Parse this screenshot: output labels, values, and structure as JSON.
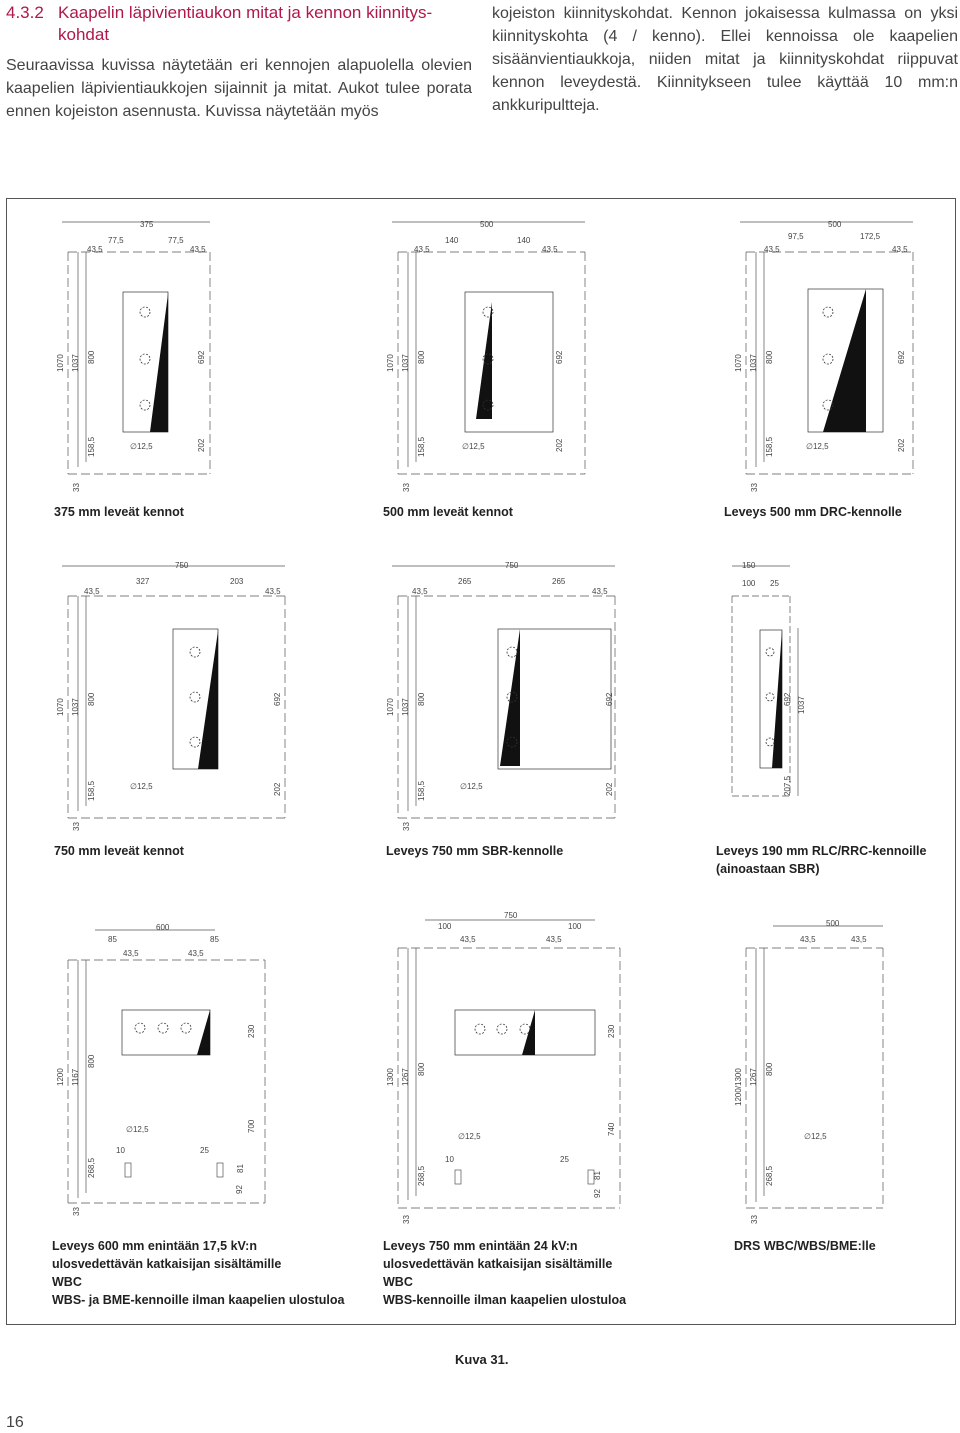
{
  "section": {
    "number": "4.3.2",
    "title": "Kaapelin läpivientiaukon mitat ja kennon kiinnitys-kohdat"
  },
  "left_paragraph": "Seuraavissa kuvissa näytetään eri kennojen alapuolella olevien kaapelien läpivientiaukkojen sijainnit ja mitat. Aukot tulee porata ennen kojeiston asennusta. Kuvissa näytetään myös",
  "right_paragraph": "kojeiston kiinnityskohdat. Kennon jokaisessa kulmassa on yksi kiinnityskohta (4 / kenno). Ellei kennoissa ole kaapelien sisäänvientiaukkoja, niiden mitat ja kiinnityskohdat riippuvat kennon leveydestä. Kiinnitykseen tulee käyttää 10 mm:n ankkuripultteja.",
  "figures": [
    {
      "caption": [
        "375 mm leveät kennot"
      ],
      "top_dims": [
        "375",
        "77,5",
        "77,5",
        "43,5",
        "43,5"
      ],
      "side_dims": [
        "1070",
        "1037",
        "800",
        "692",
        "158,5",
        "202",
        "33"
      ],
      "hole_label": "∅12,5"
    },
    {
      "caption": [
        "500 mm leveät kennot"
      ],
      "top_dims": [
        "500",
        "140",
        "140",
        "43,5",
        "43,5"
      ],
      "side_dims": [
        "1070",
        "1037",
        "800",
        "692",
        "158,5",
        "202",
        "33"
      ],
      "hole_label": "∅12,5"
    },
    {
      "caption": [
        "Leveys 500 mm DRC-kennolle"
      ],
      "top_dims": [
        "500",
        "97,5",
        "172,5",
        "43,5",
        "43,5"
      ],
      "side_dims": [
        "1070",
        "1037",
        "800",
        "692",
        "158,5",
        "202",
        "33"
      ],
      "hole_label": "∅12,5"
    },
    {
      "caption": [
        "750 mm leveät kennot"
      ],
      "top_dims": [
        "750",
        "327",
        "203",
        "43,5",
        "43,5"
      ],
      "side_dims": [
        "1070",
        "1037",
        "800",
        "692",
        "158,5",
        "202",
        "33"
      ],
      "hole_label": "∅12,5"
    },
    {
      "caption": [
        "Leveys 750 mm SBR-kennolle"
      ],
      "top_dims": [
        "750",
        "265",
        "265",
        "43,5",
        "43,5"
      ],
      "side_dims": [
        "1070",
        "1037",
        "800",
        "692",
        "158,5",
        "202",
        "33"
      ],
      "hole_label": "∅12,5"
    },
    {
      "caption": [
        "Leveys 190 mm RLC/RRC-kennoille",
        "(ainoastaan SBR)"
      ],
      "top_dims": [
        "150",
        "100",
        "25"
      ],
      "side_dims": [
        "692",
        "1037",
        "207,5"
      ]
    },
    {
      "caption": [
        "Leveys 600 mm enintään 17,5 kV:n",
        "ulosvedettävän katkaisijan sisältämille",
        "WBC",
        "WBS- ja BME-kennoille ilman kaapelien ulostuloa"
      ],
      "top_dims": [
        "600",
        "85",
        "85",
        "43,5",
        "43,5"
      ],
      "side_dims": [
        "1200",
        "1167",
        "800",
        "230",
        "700",
        "268,5",
        "92",
        "81",
        "10",
        "25",
        "33"
      ],
      "hole_label": "∅12,5"
    },
    {
      "caption": [
        "Leveys 750 mm enintään 24 kV:n",
        "ulosvedettävän katkaisijan sisältämille",
        "WBC",
        "WBS-kennoille ilman kaapelien ulostuloa"
      ],
      "top_dims": [
        "750",
        "100",
        "100",
        "43,5",
        "43,5"
      ],
      "side_dims": [
        "1300",
        "1267",
        "800",
        "230",
        "740",
        "268,5",
        "92",
        "81",
        "10",
        "25",
        "33"
      ],
      "hole_label": "∅12,5"
    },
    {
      "caption": [
        "DRS WBC/WBS/BME:lle"
      ],
      "top_dims": [
        "500",
        "43,5",
        "43,5"
      ],
      "side_dims": [
        "1200/1300",
        "1267",
        "800",
        "268,5",
        "33"
      ],
      "hole_label": "∅12,5"
    }
  ],
  "figure_label": "Kuva 31.",
  "page_number": "16"
}
